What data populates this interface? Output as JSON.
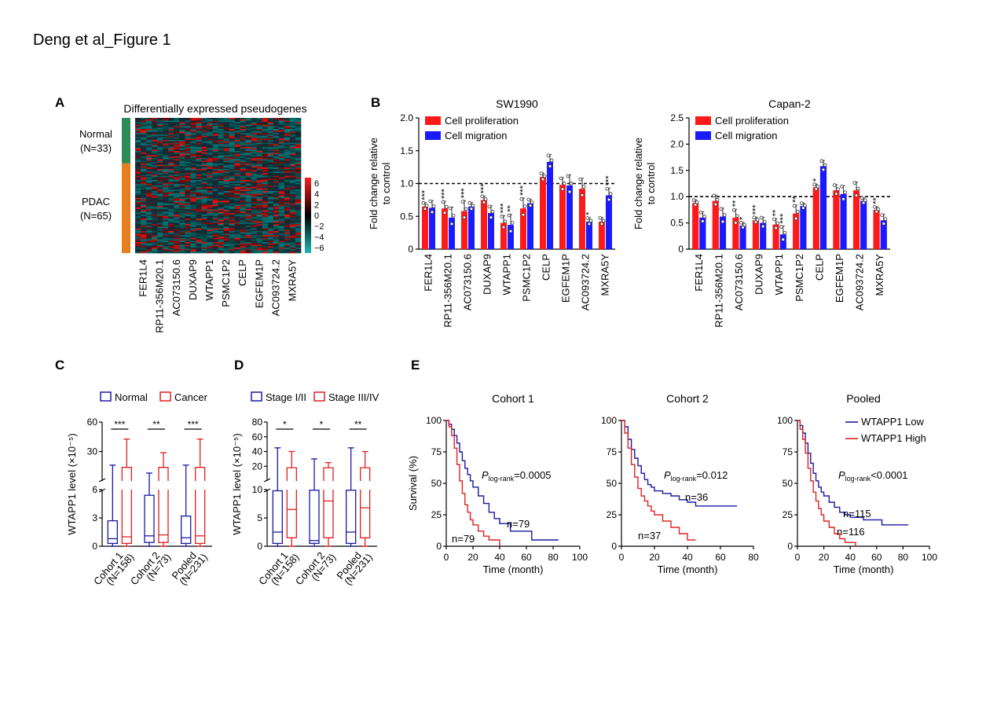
{
  "figure_title": "Deng et al_Figure 1",
  "panels": {
    "A": "A",
    "B": "B",
    "C": "C",
    "D": "D",
    "E": "E"
  },
  "chart_data": [
    {
      "id": "A",
      "type": "heatmap",
      "title": "Differentially expressed pseudogenes",
      "groups": [
        {
          "label": "Normal",
          "n": "(N=33)",
          "count": 33,
          "color": "#2e8b57"
        },
        {
          "label": "PDAC",
          "n": "(N=65)",
          "count": 65,
          "color": "#e87d1e"
        }
      ],
      "genes": [
        "FER1L4",
        "RP11-356M20.1",
        "AC073150.6",
        "DUXAP9",
        "WTAPP1",
        "PSMC1P2",
        "CELP",
        "EGFEM1P",
        "AC093724.2",
        "MXRA5Y"
      ],
      "scale_ticks": [
        "6",
        "4",
        "2",
        "0",
        "−2",
        "−4",
        "−6"
      ],
      "scale_range": [
        -7,
        7
      ],
      "low_color": "#1fb8b8",
      "mid_color": "#000000",
      "high_color": "#ff1e1e"
    },
    {
      "id": "B1",
      "type": "bar",
      "title": "SW1990",
      "ylabel_line1": "Fold change relative",
      "ylabel_line2": "to control",
      "ylim": [
        0,
        2.0
      ],
      "yticks": [
        "0",
        "0.5",
        "1.0",
        "1.5",
        "2.0"
      ],
      "categories": [
        "FER1L4",
        "RP11-356M20.1",
        "AC073150.6",
        "DUXAP9",
        "WTAPP1",
        "PSMC1P2",
        "CELP",
        "EGFEM1P",
        "AC093724.2",
        "MXRA5Y"
      ],
      "series": [
        {
          "name": "Cell proliferation",
          "color": "#ff1a1a",
          "values": [
            0.65,
            0.62,
            0.58,
            0.75,
            0.4,
            0.62,
            1.1,
            0.98,
            0.92,
            0.42
          ],
          "sig": [
            "***",
            "***",
            "***",
            "***",
            "***",
            "***",
            "",
            "",
            "",
            ""
          ]
        },
        {
          "name": "Cell migration",
          "color": "#1a1aff",
          "values": [
            0.63,
            0.48,
            0.65,
            0.55,
            0.37,
            0.7,
            1.33,
            0.97,
            0.42,
            0.82
          ],
          "sig": [
            "",
            "",
            "",
            "",
            "**",
            "",
            "",
            "",
            "*",
            "***"
          ]
        }
      ],
      "reference_line": 1.0
    },
    {
      "id": "B2",
      "type": "bar",
      "title": "Capan-2",
      "ylabel_line1": "Fold change relative",
      "ylabel_line2": "to control",
      "ylim": [
        0,
        2.5
      ],
      "yticks": [
        "0",
        "0.5",
        "1.0",
        "1.5",
        "2.0",
        "2.5"
      ],
      "categories": [
        "FER1L4",
        "RP11-356M20.1",
        "AC073150.6",
        "DUXAP9",
        "WTAPP1",
        "PSMC1P2",
        "CELP",
        "EGFEM1P",
        "AC093724.2",
        "MXRA5Y"
      ],
      "series": [
        {
          "name": "Cell proliferation",
          "color": "#ff1a1a",
          "values": [
            0.88,
            0.92,
            0.6,
            0.55,
            0.47,
            0.68,
            1.18,
            1.12,
            1.12,
            0.75
          ],
          "sig": [
            "",
            "",
            "**",
            "***",
            "**",
            "**",
            "*",
            "",
            "",
            "**"
          ]
        },
        {
          "name": "Cell migration",
          "color": "#1a1aff",
          "values": [
            0.6,
            0.62,
            0.45,
            0.5,
            0.28,
            0.82,
            1.58,
            1.05,
            0.92,
            0.55
          ],
          "sig": [
            "",
            "",
            "*",
            "",
            "***",
            "",
            "",
            "",
            "",
            ""
          ]
        }
      ],
      "reference_line": 1.0
    },
    {
      "id": "C",
      "type": "box",
      "ylabel": "WTAPP1 level (×10⁻⁵)",
      "legend": [
        {
          "name": "Normal",
          "color": "#1a1aa0"
        },
        {
          "name": "Cancer",
          "color": "#e02020"
        }
      ],
      "categories": [
        {
          "line1": "Cohort 1",
          "line2": "(N=158)"
        },
        {
          "line1": "Cohort 2",
          "line2": "(N=73)"
        },
        {
          "line1": "Pooled",
          "line2": "(N=231)"
        }
      ],
      "upper_ticks": [
        "30",
        "60"
      ],
      "lower_ticks": [
        "0",
        "3",
        "6"
      ],
      "sig": [
        "***",
        "**",
        "***"
      ],
      "boxes": [
        [
          {
            "min": 0,
            "q1": 0.3,
            "med": 0.8,
            "q3": 2.7,
            "max": 22
          },
          {
            "min": 0,
            "q1": 0.3,
            "med": 1.0,
            "q3": 20,
            "max": 45
          }
        ],
        [
          {
            "min": 0,
            "q1": 0.4,
            "med": 1.1,
            "q3": 5.4,
            "max": 15
          },
          {
            "min": 0,
            "q1": 0.4,
            "med": 1.2,
            "q3": 20,
            "max": 33
          }
        ],
        [
          {
            "min": 0,
            "q1": 0.3,
            "med": 0.9,
            "q3": 3.2,
            "max": 22
          },
          {
            "min": 0,
            "q1": 0.3,
            "med": 1.1,
            "q3": 20,
            "max": 45
          }
        ]
      ]
    },
    {
      "id": "D",
      "type": "box",
      "ylabel": "WTAPP1 level (×10⁻⁵)",
      "legend": [
        {
          "name": "Stage I/II",
          "color": "#1a1aa0"
        },
        {
          "name": "Stage III/IV",
          "color": "#e02020"
        }
      ],
      "categories": [
        {
          "line1": "Cohort 1",
          "line2": "(N=158)"
        },
        {
          "line1": "Cohort 2",
          "line2": "(N=73)"
        },
        {
          "line1": "Pooled",
          "line2": "(N=231)"
        }
      ],
      "upper_ticks": [
        "20",
        "40",
        "60",
        "80"
      ],
      "lower_ticks": [
        "0",
        "5",
        "10"
      ],
      "sig": [
        "*",
        "*",
        "**"
      ],
      "boxes": [
        [
          {
            "min": 0,
            "q1": 0.5,
            "med": 2.5,
            "q3": 9.8,
            "max": 45
          },
          {
            "min": 0,
            "q1": 1.5,
            "med": 6.5,
            "q3": 18,
            "max": 40
          }
        ],
        [
          {
            "min": 0,
            "q1": 0.5,
            "med": 1.0,
            "q3": 9.9,
            "max": 30
          },
          {
            "min": 0,
            "q1": 1.5,
            "med": 8.0,
            "q3": 18,
            "max": 25
          }
        ],
        [
          {
            "min": 0,
            "q1": 0.5,
            "med": 2.5,
            "q3": 9.9,
            "max": 45
          },
          {
            "min": 0,
            "q1": 1.5,
            "med": 6.8,
            "q3": 18,
            "max": 40
          }
        ]
      ]
    },
    {
      "id": "E",
      "type": "line",
      "subtype": "kaplan-meier",
      "ylabel": "Survival (%)",
      "xlabel": "Time (month)",
      "legend": [
        {
          "name": "WTAPP1 Low",
          "color": "#1a1aa0"
        },
        {
          "name": "WTAPP1 High",
          "color": "#e02020"
        }
      ],
      "plots": [
        {
          "title": "Cohort 1",
          "p_prefix": "P",
          "p_sub": "log-rank",
          "p_value": "=0.0005",
          "xlim": [
            0,
            100
          ],
          "xticks": [
            "0",
            "20",
            "40",
            "60",
            "80",
            "100"
          ],
          "yticks": [
            "0",
            "25",
            "50",
            "75",
            "100"
          ],
          "low": {
            "n": "n=79",
            "x": [
              0,
              2,
              4,
              6,
              8,
              10,
              12,
              14,
              16,
              18,
              20,
              24,
              28,
              32,
              36,
              40,
              48,
              56,
              64,
              84
            ],
            "y": [
              100,
              97,
              93,
              88,
              82,
              75,
              68,
              62,
              57,
              52,
              47,
              40,
              34,
              27,
              22,
              18,
              12,
              12,
              5,
              5
            ]
          },
          "high": {
            "n": "n=79",
            "x": [
              0,
              2,
              4,
              6,
              8,
              10,
              12,
              14,
              16,
              18,
              20,
              24,
              28,
              32,
              36,
              40
            ],
            "y": [
              100,
              95,
              88,
              78,
              65,
              52,
              42,
              33,
              27,
              21,
              17,
              12,
              8,
              5,
              5,
              0
            ]
          }
        },
        {
          "title": "Cohort 2",
          "p_prefix": "P",
          "p_sub": "log-rank",
          "p_value": "=0.012",
          "xlim": [
            0,
            80
          ],
          "xticks": [
            "0",
            "20",
            "40",
            "60",
            "80"
          ],
          "yticks": [
            "0",
            "25",
            "50",
            "75",
            "100"
          ],
          "low": {
            "n": "n=36",
            "x": [
              0,
              2,
              4,
              6,
              8,
              10,
              12,
              14,
              16,
              18,
              20,
              25,
              30,
              35,
              40,
              45,
              55,
              70
            ],
            "y": [
              100,
              95,
              85,
              77,
              70,
              64,
              58,
              53,
              49,
              47,
              44,
              42,
              40,
              37,
              35,
              32,
              32,
              32
            ]
          },
          "high": {
            "n": "n=37",
            "x": [
              0,
              2,
              4,
              6,
              8,
              10,
              12,
              14,
              16,
              18,
              20,
              25,
              30,
              35,
              40,
              45
            ],
            "y": [
              100,
              90,
              78,
              65,
              55,
              46,
              40,
              36,
              32,
              28,
              25,
              20,
              15,
              10,
              5,
              5
            ]
          }
        },
        {
          "title": "Pooled",
          "p_prefix": "P",
          "p_sub": "log-rank",
          "p_value": "<0.0001",
          "xlim": [
            0,
            100
          ],
          "xticks": [
            "0",
            "20",
            "40",
            "60",
            "80",
            "100"
          ],
          "yticks": [
            "0",
            "25",
            "50",
            "75",
            "100"
          ],
          "low": {
            "n": "n=115",
            "x": [
              0,
              2,
              4,
              6,
              8,
              10,
              12,
              14,
              16,
              18,
              20,
              24,
              28,
              32,
              36,
              40,
              50,
              64,
              84
            ],
            "y": [
              100,
              96,
              90,
              82,
              74,
              66,
              58,
              52,
              47,
              43,
              40,
              35,
              31,
              27,
              25,
              23,
              21,
              17,
              17
            ]
          },
          "high": {
            "n": "n=116",
            "x": [
              0,
              2,
              4,
              6,
              8,
              10,
              12,
              14,
              16,
              18,
              20,
              24,
              28,
              32,
              36,
              40,
              44
            ],
            "y": [
              100,
              93,
              85,
              74,
              62,
              52,
              43,
              36,
              30,
              25,
              20,
              15,
              10,
              6,
              3,
              3,
              0
            ]
          }
        }
      ]
    }
  ]
}
